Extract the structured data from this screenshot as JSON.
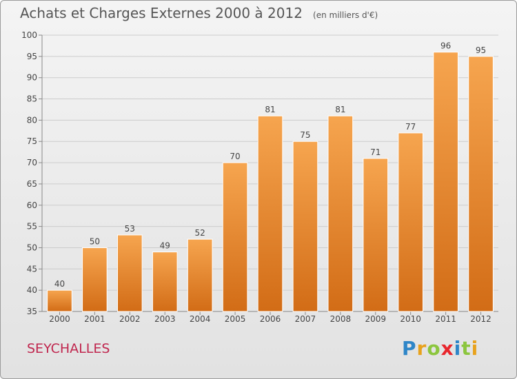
{
  "header": {
    "title": "Achats et Charges Externes 2000 à 2012",
    "subtitle": "(en milliers d'€)"
  },
  "footer": {
    "place": "SEYCHALLES",
    "logo_letters": [
      {
        "char": "P",
        "color": "#2e86c8"
      },
      {
        "char": "r",
        "color": "#e8a21d"
      },
      {
        "char": "o",
        "color": "#8cc63e"
      },
      {
        "char": "x",
        "color": "#e8262d"
      },
      {
        "char": "i",
        "color": "#2e86c8"
      },
      {
        "char": "t",
        "color": "#8cc63e"
      },
      {
        "char": "i",
        "color": "#e8a21d"
      }
    ]
  },
  "colors": {
    "bar_top": "#f6a54f",
    "bar_bottom": "#d26c16",
    "grid": "#cccccc",
    "axis_text": "#444444"
  },
  "chart_data": {
    "type": "bar",
    "title": "Achats et Charges Externes 2000 à 2012",
    "subtitle": "(en milliers d'€)",
    "categories": [
      "2000",
      "2001",
      "2002",
      "2003",
      "2004",
      "2005",
      "2006",
      "2007",
      "2008",
      "2009",
      "2010",
      "2011",
      "2012"
    ],
    "values": [
      40,
      50,
      53,
      49,
      52,
      70,
      81,
      75,
      81,
      71,
      77,
      96,
      95
    ],
    "ylim": [
      35,
      100
    ],
    "yticks": [
      35,
      40,
      45,
      50,
      55,
      60,
      65,
      70,
      75,
      80,
      85,
      90,
      95,
      100
    ],
    "grid": true,
    "data_labels": true,
    "xlabel": "",
    "ylabel": ""
  }
}
